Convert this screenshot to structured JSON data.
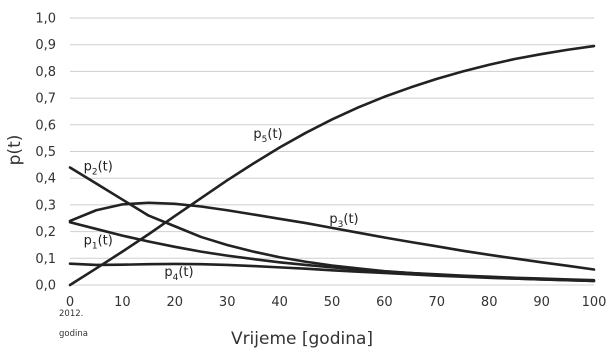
{
  "chart_data": {
    "type": "line",
    "title": "",
    "xlabel": "Vrijeme [godina]",
    "ylabel": "p(t)",
    "xlim": [
      0,
      100
    ],
    "ylim": [
      0,
      1
    ],
    "x_ticks": [
      "0",
      "10",
      "20",
      "30",
      "40",
      "50",
      "60",
      "70",
      "80",
      "90",
      "100"
    ],
    "y_ticks": [
      "0,0",
      "0,1",
      "0,2",
      "0,3",
      "0,4",
      "0,5",
      "0,6",
      "0,7",
      "0,8",
      "0,9",
      "1,0"
    ],
    "x_tick_note": [
      "2012.",
      "godina"
    ],
    "grid": "horizontal",
    "x": [
      0,
      5,
      10,
      15,
      20,
      25,
      30,
      35,
      40,
      45,
      50,
      55,
      60,
      65,
      70,
      75,
      80,
      85,
      90,
      95,
      100
    ],
    "series": [
      {
        "name": "p₁(t)",
        "base": "p",
        "sub": "1",
        "values": [
          0.235,
          0.21,
          0.185,
          0.163,
          0.143,
          0.125,
          0.11,
          0.097,
          0.085,
          0.075,
          0.066,
          0.058,
          0.051,
          0.045,
          0.04,
          0.035,
          0.031,
          0.027,
          0.024,
          0.021,
          0.018
        ]
      },
      {
        "name": "p₂(t)",
        "base": "p",
        "sub": "2",
        "values": [
          0.44,
          0.38,
          0.32,
          0.26,
          0.22,
          0.18,
          0.15,
          0.125,
          0.104,
          0.087,
          0.073,
          0.062,
          0.052,
          0.045,
          0.038,
          0.033,
          0.028,
          0.024,
          0.021,
          0.018,
          0.015
        ]
      },
      {
        "name": "p₃(t)",
        "base": "p",
        "sub": "3",
        "values": [
          0.24,
          0.28,
          0.302,
          0.308,
          0.304,
          0.294,
          0.28,
          0.264,
          0.248,
          0.232,
          0.214,
          0.196,
          0.178,
          0.161,
          0.145,
          0.128,
          0.113,
          0.099,
          0.085,
          0.072,
          0.058
        ]
      },
      {
        "name": "p₄(t)",
        "base": "p",
        "sub": "4",
        "values": [
          0.08,
          0.075,
          0.076,
          0.078,
          0.079,
          0.078,
          0.075,
          0.071,
          0.066,
          0.061,
          0.055,
          0.05,
          0.045,
          0.04,
          0.035,
          0.031,
          0.027,
          0.024,
          0.021,
          0.018,
          0.015
        ]
      },
      {
        "name": "p₅(t)",
        "base": "p",
        "sub": "5",
        "values": [
          0.0,
          0.062,
          0.125,
          0.19,
          0.258,
          0.325,
          0.392,
          0.455,
          0.515,
          0.57,
          0.62,
          0.665,
          0.705,
          0.74,
          0.772,
          0.8,
          0.825,
          0.847,
          0.865,
          0.881,
          0.895
        ]
      }
    ],
    "label_points": [
      {
        "series": "p₁(t)",
        "x": 2.6,
        "y": 0.152
      },
      {
        "series": "p₂(t)",
        "x": 2.6,
        "y": 0.428
      },
      {
        "series": "p₃(t)",
        "x": 49.5,
        "y": 0.233
      },
      {
        "series": "p₄(t)",
        "x": 18.0,
        "y": 0.033
      },
      {
        "series": "p₅(t)",
        "x": 35.0,
        "y": 0.55
      }
    ]
  }
}
